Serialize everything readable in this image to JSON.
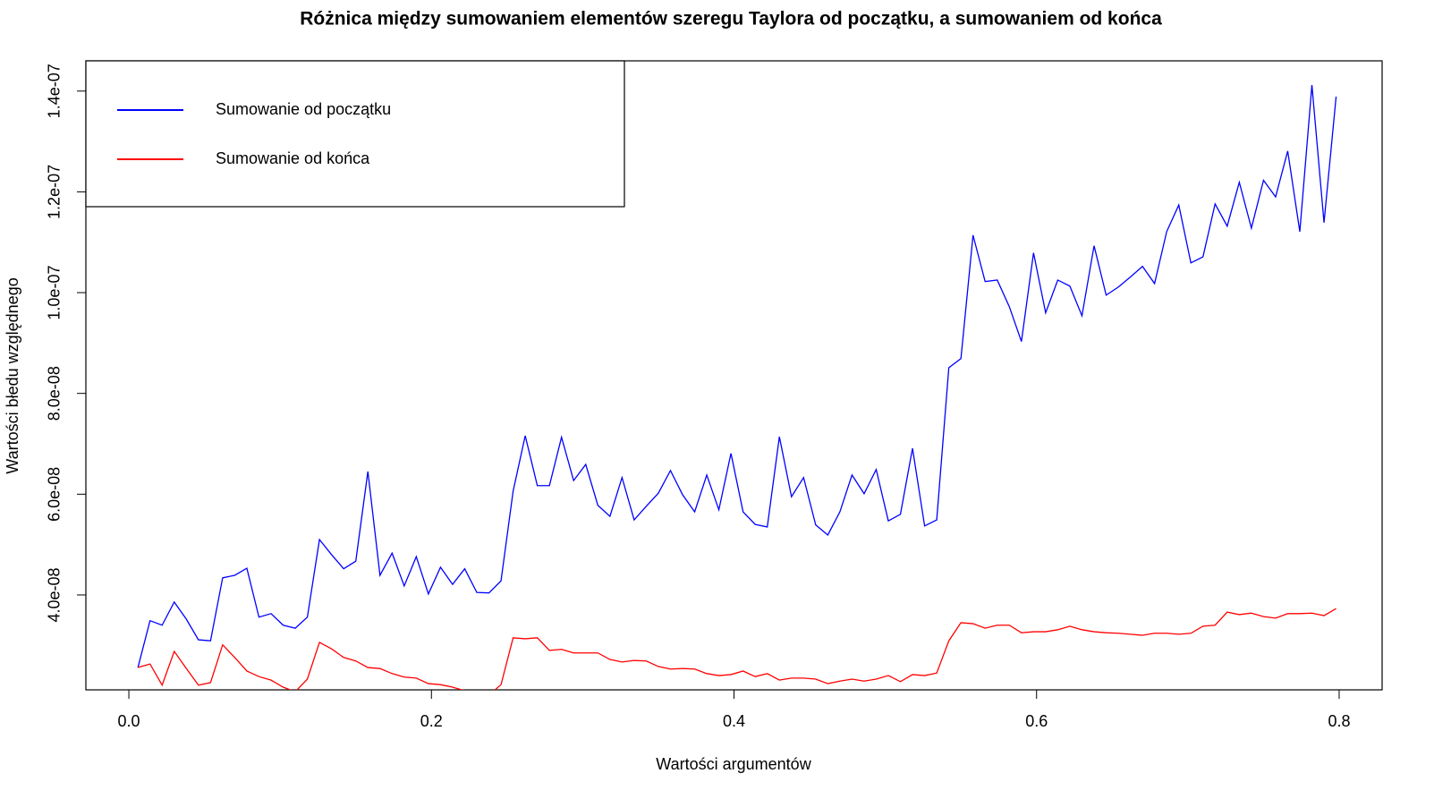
{
  "chart_data": {
    "type": "line",
    "title": "Różnica między sumowaniem elementów szeregu Taylora od początku, a sumowaniem od końca",
    "x_label": "Wartości argumentów",
    "y_label": "Wartości błedu względnego",
    "x": [
      0.006,
      0.014,
      0.022,
      0.03,
      0.038,
      0.046,
      0.054,
      0.062,
      0.07,
      0.078,
      0.086,
      0.094,
      0.102,
      0.11,
      0.118,
      0.126,
      0.134,
      0.142,
      0.15,
      0.158,
      0.166,
      0.174,
      0.182,
      0.19,
      0.198,
      0.206,
      0.214,
      0.222,
      0.23,
      0.238,
      0.246,
      0.254,
      0.262,
      0.27,
      0.278,
      0.286,
      0.294,
      0.302,
      0.31,
      0.318,
      0.326,
      0.334,
      0.342,
      0.35,
      0.358,
      0.366,
      0.374,
      0.382,
      0.39,
      0.398,
      0.406,
      0.414,
      0.422,
      0.43,
      0.438,
      0.446,
      0.454,
      0.462,
      0.47,
      0.478,
      0.486,
      0.494,
      0.502,
      0.51,
      0.518,
      0.526,
      0.534,
      0.542,
      0.55,
      0.558,
      0.566,
      0.574,
      0.582,
      0.59,
      0.598,
      0.606,
      0.614,
      0.622,
      0.63,
      0.638,
      0.646,
      0.654,
      0.662,
      0.67,
      0.678,
      0.686,
      0.694,
      0.702,
      0.71,
      0.718,
      0.726,
      0.734,
      0.742,
      0.75,
      0.758,
      0.766,
      0.774,
      0.782,
      0.79,
      0.798
    ],
    "series": [
      {
        "name": "Sumowanie od początku",
        "color": "#0000ff",
        "values": [
          2.56e-08,
          3.49e-08,
          3.4e-08,
          3.86e-08,
          3.52e-08,
          3.11e-08,
          3.09e-08,
          4.34e-08,
          4.39e-08,
          4.53e-08,
          3.56e-08,
          3.63e-08,
          3.4e-08,
          3.34e-08,
          3.56e-08,
          5.1e-08,
          4.8e-08,
          4.52e-08,
          4.67e-08,
          6.45e-08,
          4.39e-08,
          4.83e-08,
          4.18e-08,
          4.76e-08,
          4.02e-08,
          4.55e-08,
          4.21e-08,
          4.52e-08,
          4.05e-08,
          4.04e-08,
          4.28e-08,
          6.06e-08,
          7.16e-08,
          6.17e-08,
          6.17e-08,
          7.13e-08,
          6.27e-08,
          6.59e-08,
          5.78e-08,
          5.56e-08,
          6.33e-08,
          5.49e-08,
          5.76e-08,
          6.02e-08,
          6.47e-08,
          5.99e-08,
          5.65e-08,
          6.38e-08,
          5.69e-08,
          6.81e-08,
          5.65e-08,
          5.4e-08,
          5.35e-08,
          7.14e-08,
          5.95e-08,
          6.33e-08,
          5.39e-08,
          5.19e-08,
          5.65e-08,
          6.38e-08,
          6.01e-08,
          6.49e-08,
          5.47e-08,
          5.6e-08,
          6.91e-08,
          5.37e-08,
          5.49e-08,
          8.51e-08,
          8.69e-08,
          1.114e-07,
          1.022e-07,
          1.025e-07,
          9.72e-08,
          9.03e-08,
          1.079e-07,
          9.6e-08,
          1.025e-07,
          1.013e-07,
          9.54e-08,
          1.093e-07,
          9.95e-08,
          1.011e-07,
          1.031e-07,
          1.052e-07,
          1.018e-07,
          1.121e-07,
          1.174e-07,
          1.059e-07,
          1.071e-07,
          1.176e-07,
          1.132e-07,
          1.219e-07,
          1.128e-07,
          1.223e-07,
          1.19e-07,
          1.281e-07,
          1.121e-07,
          1.412e-07,
          1.139e-07,
          1.389e-07
        ]
      },
      {
        "name": "Sumowanie od końca",
        "color": "#ff0000",
        "values": [
          2.56e-08,
          2.63e-08,
          2.21e-08,
          2.88e-08,
          2.54e-08,
          2.21e-08,
          2.26e-08,
          3.01e-08,
          2.76e-08,
          2.49e-08,
          2.38e-08,
          2.31e-08,
          2.17e-08,
          2.08e-08,
          2.33e-08,
          3.06e-08,
          2.93e-08,
          2.76e-08,
          2.69e-08,
          2.56e-08,
          2.54e-08,
          2.44e-08,
          2.37e-08,
          2.35e-08,
          2.24e-08,
          2.22e-08,
          2.17e-08,
          2.1e-08,
          2.03e-08,
          2.01e-08,
          2.22e-08,
          3.15e-08,
          3.13e-08,
          3.15e-08,
          2.9e-08,
          2.92e-08,
          2.85e-08,
          2.85e-08,
          2.85e-08,
          2.72e-08,
          2.67e-08,
          2.7e-08,
          2.69e-08,
          2.58e-08,
          2.53e-08,
          2.54e-08,
          2.53e-08,
          2.44e-08,
          2.4e-08,
          2.42e-08,
          2.49e-08,
          2.38e-08,
          2.44e-08,
          2.31e-08,
          2.35e-08,
          2.35e-08,
          2.33e-08,
          2.24e-08,
          2.29e-08,
          2.33e-08,
          2.29e-08,
          2.33e-08,
          2.4e-08,
          2.28e-08,
          2.42e-08,
          2.4e-08,
          2.45e-08,
          3.09e-08,
          3.45e-08,
          3.43e-08,
          3.34e-08,
          3.4e-08,
          3.4e-08,
          3.25e-08,
          3.27e-08,
          3.27e-08,
          3.31e-08,
          3.38e-08,
          3.31e-08,
          3.27e-08,
          3.25e-08,
          3.24e-08,
          3.22e-08,
          3.2e-08,
          3.24e-08,
          3.24e-08,
          3.22e-08,
          3.24e-08,
          3.38e-08,
          3.4e-08,
          3.66e-08,
          3.61e-08,
          3.64e-08,
          3.57e-08,
          3.54e-08,
          3.63e-08,
          3.63e-08,
          3.64e-08,
          3.59e-08,
          3.73e-08
        ]
      }
    ],
    "xlim": [
      -0.0284,
      0.8284
    ],
    "xticks": [
      {
        "value": 0,
        "label": "0.0"
      },
      0.2,
      0.4,
      0.6,
      0.8
    ],
    "ylim": [
      2.117e-08,
      1.46e-07
    ],
    "yticks": [
      {
        "value": 4e-08,
        "label": "4.0e-08"
      },
      {
        "value": 6e-08,
        "label": "6.0e-08"
      },
      {
        "value": 8e-08,
        "label": "8.0e-08"
      },
      {
        "value": 1e-07,
        "label": "1.0e-07"
      },
      {
        "value": 1.2e-07,
        "label": "1.2e-07"
      },
      {
        "value": 1.4e-07,
        "label": "1.4e-07"
      }
    ],
    "legend": "top-left"
  }
}
